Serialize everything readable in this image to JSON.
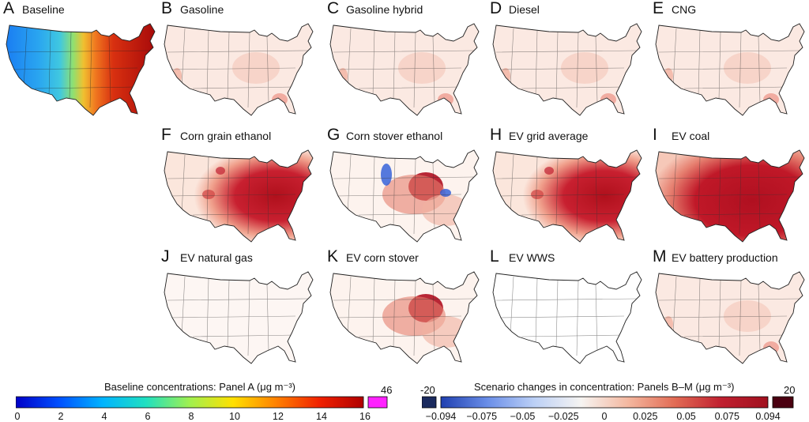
{
  "panels": [
    {
      "letter": "A",
      "title": "Baseline",
      "kind": "baseline"
    },
    {
      "letter": "B",
      "title": "Gasoline",
      "kind": "light"
    },
    {
      "letter": "C",
      "title": "Gasoline hybrid",
      "kind": "light"
    },
    {
      "letter": "D",
      "title": "Diesel",
      "kind": "light"
    },
    {
      "letter": "E",
      "title": "CNG",
      "kind": "light"
    },
    {
      "letter": "F",
      "title": "Corn grain ethanol",
      "kind": "heavy-east"
    },
    {
      "letter": "G",
      "title": "Corn stover ethanol",
      "kind": "midwest-mixed"
    },
    {
      "letter": "H",
      "title": "EV grid average",
      "kind": "heavy-east"
    },
    {
      "letter": "I",
      "title": "EV coal",
      "kind": "very-heavy"
    },
    {
      "letter": "J",
      "title": "EV natural gas",
      "kind": "very-light"
    },
    {
      "letter": "K",
      "title": "EV corn stover",
      "kind": "midwest"
    },
    {
      "letter": "L",
      "title": "EV WWS",
      "kind": "blank"
    },
    {
      "letter": "M",
      "title": "EV battery production",
      "kind": "light"
    }
  ],
  "colorbars": {
    "baseline": {
      "title": "Baseline concentrations: Panel A (μg m⁻³)",
      "ticks": [
        "0",
        "2",
        "4",
        "6",
        "8",
        "10",
        "12",
        "14",
        "16"
      ],
      "overflow_label": "46",
      "colors": [
        "#0000c8",
        "#0050ff",
        "#00b4ff",
        "#20e0c0",
        "#a0f050",
        "#ffe000",
        "#ff8000",
        "#f02000",
        "#b00000"
      ],
      "overflow_color": "#ff22ff"
    },
    "scenario": {
      "title": "Scenario changes in concentration: Panels B–M (μg m⁻³)",
      "ticks": [
        "−0.094",
        "−0.075",
        "−0.05",
        "−0.025",
        "0",
        "0.025",
        "0.05",
        "0.075",
        "0.094"
      ],
      "under_label": "-20",
      "over_label": "20",
      "colors": [
        "#2040b0",
        "#6a8ee8",
        "#bcd0f6",
        "#f6f4f2",
        "#f4b8a0",
        "#e26c55",
        "#c02030",
        "#a0101e"
      ],
      "under_color": "#1a2a5e",
      "over_color": "#4a0010"
    }
  }
}
